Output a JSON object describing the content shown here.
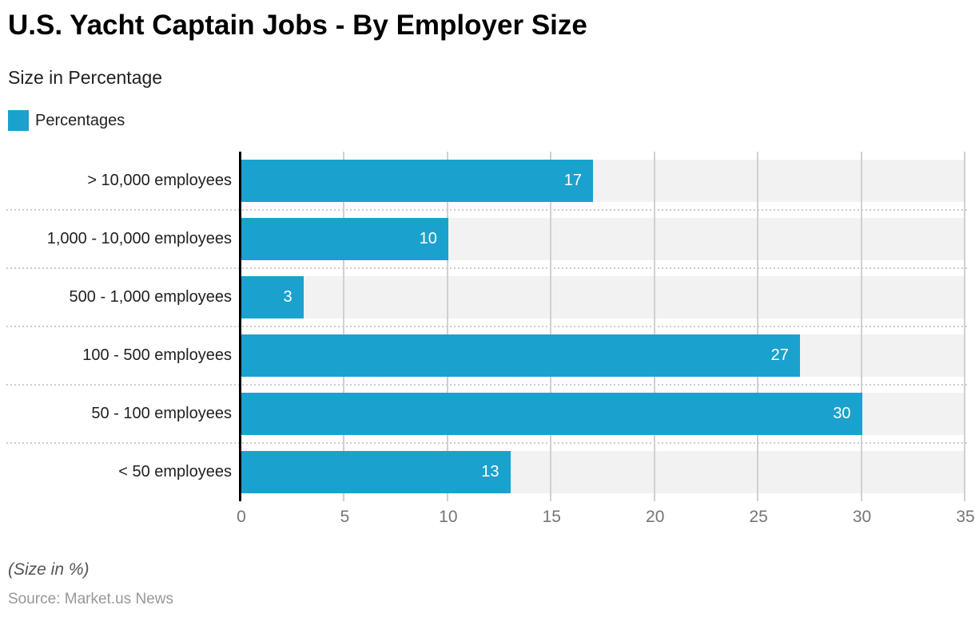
{
  "header": {
    "title": "U.S. Yacht Captain Jobs - By Employer Size",
    "subtitle": "Size in Percentage"
  },
  "legend": {
    "label": "Percentages"
  },
  "footer": {
    "note": "(Size in %)",
    "source": "Source: Market.us News"
  },
  "colors": {
    "bar": "#1BA1CE",
    "track": "#F2F2F2",
    "grid_line": "#D0D0D0",
    "separator": "#CCCCCC",
    "axis_line": "#000000",
    "tick_text": "#757575",
    "label_text": "#212121",
    "value_text": "#FFFFFF"
  },
  "chart_data": {
    "type": "bar",
    "orientation": "horizontal",
    "title": "U.S. Yacht Captain Jobs - By Employer Size",
    "subtitle": "Size in Percentage",
    "series_name": "Percentages",
    "categories": [
      "> 10,000 employees",
      "1,000 - 10,000 employees",
      "500 - 1,000 employees",
      "100 - 500 employees",
      "50 - 100 employees",
      "< 50 employees"
    ],
    "values": [
      17,
      10,
      3,
      27,
      30,
      13
    ],
    "xlabel": "",
    "ylabel": "",
    "xlim": [
      0,
      35
    ],
    "xticks": [
      0,
      5,
      10,
      15,
      20,
      25,
      30,
      35
    ],
    "grid": true,
    "legend_position": "top-left",
    "note": "(Size in %)",
    "source": "Source: Market.us News"
  }
}
